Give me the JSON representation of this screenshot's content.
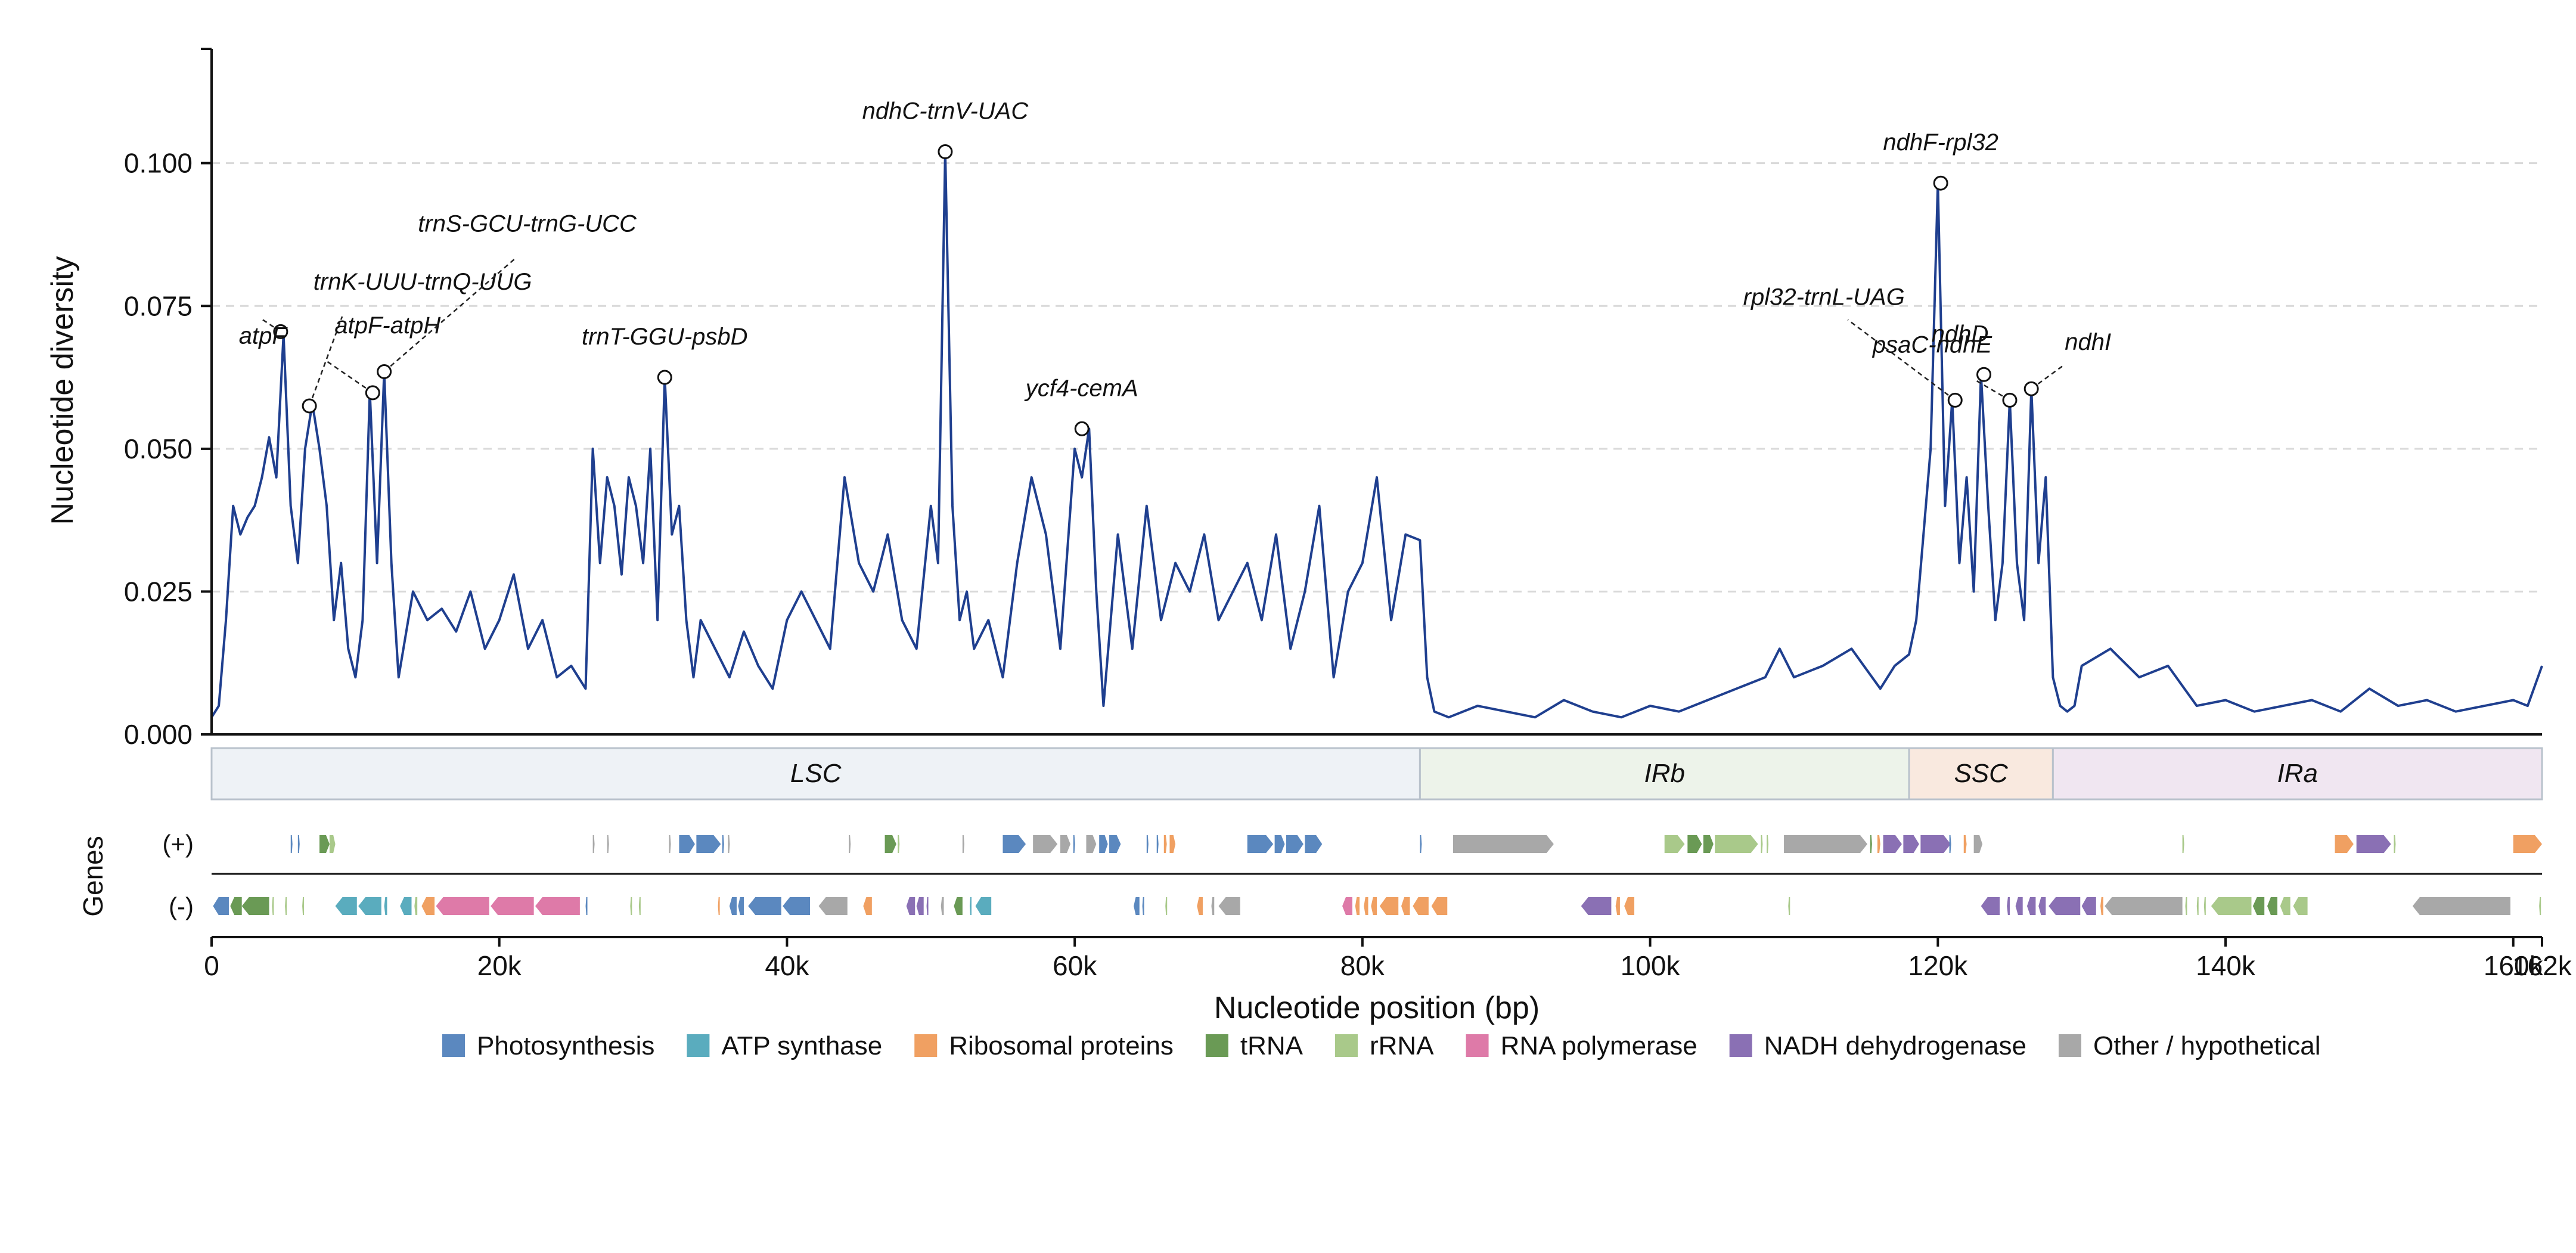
{
  "chart_data": {
    "type": "line",
    "title": "",
    "ylabel": "Nucleotide diversity",
    "xlabel": "Nucleotide position (bp)",
    "genes_label": "Genes",
    "strand_plus_label": "(+)",
    "strand_minus_label": "(-)",
    "ylim": [
      0,
      0.12
    ],
    "xlim": [
      0,
      162000
    ],
    "y_ticks": [
      0,
      0.025,
      0.05,
      0.075,
      0.1
    ],
    "y_tick_labels": [
      "0.000",
      "0.025",
      "0.050",
      "0.075",
      "0.100"
    ],
    "x_ticks": [
      0,
      20000,
      40000,
      60000,
      80000,
      100000,
      120000,
      140000,
      160000,
      162000
    ],
    "x_tick_labels": [
      "0",
      "20k",
      "40k",
      "60k",
      "80k",
      "100k",
      "120k",
      "140k",
      "160k",
      "162k"
    ],
    "grid": "horizontal dashed",
    "line_color": "#1f3f8f",
    "series": [
      {
        "x": [
          0,
          500,
          1000,
          1500,
          2000,
          2500,
          3000,
          3500,
          4000,
          4500,
          5000,
          5500,
          6000,
          6500,
          7000,
          7500,
          8000,
          8500,
          9000,
          9500,
          10000,
          10500,
          11000,
          11500,
          12000,
          12500,
          13000,
          14000,
          15000,
          16000,
          17000,
          18000,
          19000,
          20000,
          21000,
          22000,
          23000,
          24000,
          25000,
          26000,
          26500,
          27000,
          27500,
          28000,
          28500,
          29000,
          29500,
          30000,
          30500,
          31000,
          31500,
          32000,
          32500,
          33000,
          33500,
          34000,
          35000,
          36000,
          37000,
          38000,
          39000,
          40000,
          41000,
          42000,
          43000,
          44000,
          45000,
          46000,
          47000,
          48000,
          49000,
          50000,
          50500,
          51000,
          51500,
          52000,
          52500,
          53000,
          54000,
          55000,
          56000,
          57000,
          58000,
          59000,
          60000,
          60500,
          61000,
          61500,
          62000,
          63000,
          64000,
          65000,
          66000,
          67000,
          68000,
          69000,
          70000,
          71000,
          72000,
          73000,
          74000,
          75000,
          76000,
          77000,
          78000,
          79000,
          80000,
          81000,
          82000,
          83000,
          84000,
          84500,
          85000,
          86000,
          88000,
          90000,
          92000,
          94000,
          96000,
          98000,
          100000,
          102000,
          104000,
          106000,
          108000,
          109000,
          110000,
          112000,
          114000,
          116000,
          117000,
          118000,
          118500,
          119000,
          119500,
          120000,
          120500,
          121000,
          121500,
          122000,
          122500,
          123000,
          123500,
          124000,
          124500,
          125000,
          125500,
          126000,
          126500,
          127000,
          127500,
          128000,
          128500,
          129000,
          129500,
          130000,
          132000,
          134000,
          136000,
          138000,
          140000,
          142000,
          144000,
          146000,
          148000,
          150000,
          152000,
          154000,
          156000,
          158000,
          160000,
          161000,
          162000
        ],
        "y": [
          0.003,
          0.005,
          0.02,
          0.04,
          0.035,
          0.038,
          0.04,
          0.045,
          0.052,
          0.045,
          0.07,
          0.04,
          0.03,
          0.05,
          0.058,
          0.05,
          0.04,
          0.02,
          0.03,
          0.015,
          0.01,
          0.02,
          0.06,
          0.03,
          0.0635,
          0.03,
          0.01,
          0.025,
          0.02,
          0.022,
          0.018,
          0.025,
          0.015,
          0.02,
          0.028,
          0.015,
          0.02,
          0.01,
          0.012,
          0.008,
          0.05,
          0.03,
          0.045,
          0.04,
          0.028,
          0.045,
          0.04,
          0.03,
          0.05,
          0.02,
          0.0625,
          0.035,
          0.04,
          0.02,
          0.01,
          0.02,
          0.015,
          0.01,
          0.018,
          0.012,
          0.008,
          0.02,
          0.025,
          0.02,
          0.015,
          0.045,
          0.03,
          0.025,
          0.035,
          0.02,
          0.015,
          0.04,
          0.03,
          0.102,
          0.04,
          0.02,
          0.025,
          0.015,
          0.02,
          0.01,
          0.03,
          0.045,
          0.035,
          0.015,
          0.05,
          0.045,
          0.0535,
          0.025,
          0.005,
          0.035,
          0.015,
          0.04,
          0.02,
          0.03,
          0.025,
          0.035,
          0.02,
          0.025,
          0.03,
          0.02,
          0.035,
          0.015,
          0.025,
          0.04,
          0.01,
          0.025,
          0.03,
          0.045,
          0.02,
          0.035,
          0.034,
          0.01,
          0.004,
          0.003,
          0.005,
          0.004,
          0.003,
          0.006,
          0.004,
          0.003,
          0.005,
          0.004,
          0.006,
          0.008,
          0.01,
          0.015,
          0.01,
          0.012,
          0.015,
          0.008,
          0.012,
          0.014,
          0.02,
          0.035,
          0.05,
          0.0965,
          0.04,
          0.0585,
          0.03,
          0.045,
          0.025,
          0.063,
          0.04,
          0.02,
          0.03,
          0.0585,
          0.03,
          0.02,
          0.0605,
          0.03,
          0.045,
          0.01,
          0.005,
          0.004,
          0.005,
          0.012,
          0.015,
          0.01,
          0.012,
          0.005,
          0.006,
          0.004,
          0.005,
          0.006,
          0.004,
          0.008,
          0.005,
          0.006,
          0.004,
          0.005,
          0.006,
          0.005,
          0.012
        ]
      }
    ],
    "peaks": [
      {
        "label": "atpF",
        "x": 4800,
        "y": 0.0705
      },
      {
        "label": "trnK-UUU-trnQ-UUG",
        "x": 6800,
        "y": 0.0575
      },
      {
        "label": "atpF-atpH",
        "x": 11200,
        "y": 0.0598
      },
      {
        "label": "trnS-GCU-trnG-UCC",
        "x": 12000,
        "y": 0.0635
      },
      {
        "label": "trnT-GGU-psbD",
        "x": 31500,
        "y": 0.0625
      },
      {
        "label": "ndhC-trnV-UAC",
        "x": 51000,
        "y": 0.102
      },
      {
        "label": "ycf4-cemA",
        "x": 60500,
        "y": 0.0535
      },
      {
        "label": "ndhF-rpl32",
        "x": 120200,
        "y": 0.0965
      },
      {
        "label": "rpl32-trnL-UAG",
        "x": 121200,
        "y": 0.0585
      },
      {
        "label": "ndhD",
        "x": 123200,
        "y": 0.063
      },
      {
        "label": "psaC-ndhE",
        "x": 125000,
        "y": 0.0585
      },
      {
        "label": "ndhI",
        "x": 126500,
        "y": 0.0605
      }
    ],
    "regions": [
      {
        "label": "LSC",
        "start": 0,
        "end": 84000,
        "color": "#eef2f6"
      },
      {
        "label": "IRb",
        "start": 84000,
        "end": 118000,
        "color": "#edf3ea"
      },
      {
        "label": "SSC",
        "start": 118000,
        "end": 128000,
        "color": "#f9e9df"
      },
      {
        "label": "IRa",
        "start": 128000,
        "end": 162000,
        "color": "#f0e6f1"
      }
    ],
    "legend": [
      {
        "label": "Photosynthesis",
        "color": "#5b88bf"
      },
      {
        "label": "ATP synthase",
        "color": "#5aacbe"
      },
      {
        "label": "Ribosomal proteins",
        "color": "#f0a062"
      },
      {
        "label": "tRNA",
        "color": "#6a9a55"
      },
      {
        "label": "rRNA",
        "color": "#a9c98a"
      },
      {
        "label": "RNA polymerase",
        "color": "#de7aa8"
      },
      {
        "label": "NADH dehydrogenase",
        "color": "#8a70b4"
      },
      {
        "label": "Other / hypothetical",
        "color": "#a8a8a8"
      }
    ],
    "genes_plus": [
      {
        "s": 5500,
        "e": 5600,
        "c": "#5b88bf"
      },
      {
        "s": 6000,
        "e": 6100,
        "c": "#5b88bf"
      },
      {
        "s": 7500,
        "e": 8200,
        "c": "#6a9a55"
      },
      {
        "s": 8200,
        "e": 8600,
        "c": "#a9c98a"
      },
      {
        "s": 26500,
        "e": 26600,
        "c": "#a8a8a8"
      },
      {
        "s": 27500,
        "e": 27600,
        "c": "#a8a8a8"
      },
      {
        "s": 31800,
        "e": 31900,
        "c": "#a8a8a8"
      },
      {
        "s": 32500,
        "e": 33600,
        "c": "#5b88bf"
      },
      {
        "s": 33700,
        "e": 35400,
        "c": "#5b88bf"
      },
      {
        "s": 35500,
        "e": 35600,
        "c": "#5b88bf"
      },
      {
        "s": 35900,
        "e": 36000,
        "c": "#a8a8a8"
      },
      {
        "s": 44300,
        "e": 44400,
        "c": "#a8a8a8"
      },
      {
        "s": 46800,
        "e": 47600,
        "c": "#6a9a55"
      },
      {
        "s": 47700,
        "e": 47800,
        "c": "#a9c98a"
      },
      {
        "s": 52200,
        "e": 52300,
        "c": "#a8a8a8"
      },
      {
        "s": 55000,
        "e": 56600,
        "c": "#5b88bf"
      },
      {
        "s": 57100,
        "e": 58800,
        "c": "#a8a8a8"
      },
      {
        "s": 59000,
        "e": 59700,
        "c": "#a8a8a8"
      },
      {
        "s": 59900,
        "e": 60000,
        "c": "#5b88bf"
      },
      {
        "s": 60800,
        "e": 61500,
        "c": "#a8a8a8"
      },
      {
        "s": 61700,
        "e": 62300,
        "c": "#5b88bf"
      },
      {
        "s": 62400,
        "e": 63200,
        "c": "#5b88bf"
      },
      {
        "s": 65000,
        "e": 65100,
        "c": "#5b88bf"
      },
      {
        "s": 65700,
        "e": 65800,
        "c": "#5b88bf"
      },
      {
        "s": 66200,
        "e": 66400,
        "c": "#f0a062"
      },
      {
        "s": 66600,
        "e": 67000,
        "c": "#f0a062"
      },
      {
        "s": 72000,
        "e": 73800,
        "c": "#5b88bf"
      },
      {
        "s": 73900,
        "e": 74600,
        "c": "#5b88bf"
      },
      {
        "s": 74700,
        "e": 75900,
        "c": "#5b88bf"
      },
      {
        "s": 76000,
        "e": 77200,
        "c": "#5b88bf"
      },
      {
        "s": 84000,
        "e": 84100,
        "c": "#5b88bf"
      },
      {
        "s": 86300,
        "e": 93300,
        "c": "#a8a8a8"
      },
      {
        "s": 101000,
        "e": 102400,
        "c": "#a9c98a"
      },
      {
        "s": 102600,
        "e": 103600,
        "c": "#6a9a55"
      },
      {
        "s": 103700,
        "e": 104400,
        "c": "#6a9a55"
      },
      {
        "s": 104500,
        "e": 107500,
        "c": "#a9c98a"
      },
      {
        "s": 107700,
        "e": 107800,
        "c": "#a9c98a"
      },
      {
        "s": 108100,
        "e": 108200,
        "c": "#a9c98a"
      },
      {
        "s": 109300,
        "e": 115100,
        "c": "#a8a8a8"
      },
      {
        "s": 115300,
        "e": 115400,
        "c": "#6a9a55"
      },
      {
        "s": 115800,
        "e": 116000,
        "c": "#f0a062"
      },
      {
        "s": 116200,
        "e": 117500,
        "c": "#8a70b4"
      },
      {
        "s": 117600,
        "e": 118700,
        "c": "#8a70b4"
      },
      {
        "s": 118800,
        "e": 120900,
        "c": "#8a70b4"
      },
      {
        "s": 120800,
        "e": 120900,
        "c": "#5b88bf"
      },
      {
        "s": 121800,
        "e": 122000,
        "c": "#f0a062"
      },
      {
        "s": 122500,
        "e": 123100,
        "c": "#a8a8a8"
      },
      {
        "s": 137000,
        "e": 137100,
        "c": "#a9c98a"
      },
      {
        "s": 147600,
        "e": 148900,
        "c": "#f0a062"
      },
      {
        "s": 149100,
        "e": 151500,
        "c": "#8a70b4"
      },
      {
        "s": 151700,
        "e": 151800,
        "c": "#a9c98a"
      },
      {
        "s": 160000,
        "e": 162000,
        "c": "#f0a062"
      }
    ],
    "genes_minus": [
      {
        "s": 100,
        "e": 1200,
        "c": "#5b88bf"
      },
      {
        "s": 1300,
        "e": 2100,
        "c": "#6a9a55"
      },
      {
        "s": 2100,
        "e": 4000,
        "c": "#6a9a55"
      },
      {
        "s": 4200,
        "e": 4300,
        "c": "#a9c98a"
      },
      {
        "s": 5100,
        "e": 5200,
        "c": "#a9c98a"
      },
      {
        "s": 6300,
        "e": 6400,
        "c": "#a9c98a"
      },
      {
        "s": 8600,
        "e": 10100,
        "c": "#5aacbe"
      },
      {
        "s": 10200,
        "e": 11800,
        "c": "#5aacbe"
      },
      {
        "s": 12000,
        "e": 12200,
        "c": "#5aacbe"
      },
      {
        "s": 13100,
        "e": 13900,
        "c": "#5aacbe"
      },
      {
        "s": 14100,
        "e": 14300,
        "c": "#a9c98a"
      },
      {
        "s": 14600,
        "e": 15500,
        "c": "#f0a062"
      },
      {
        "s": 15600,
        "e": 19300,
        "c": "#de7aa8"
      },
      {
        "s": 19400,
        "e": 22400,
        "c": "#de7aa8"
      },
      {
        "s": 22500,
        "e": 25600,
        "c": "#de7aa8"
      },
      {
        "s": 26000,
        "e": 26100,
        "c": "#5b88bf"
      },
      {
        "s": 29100,
        "e": 29200,
        "c": "#a9c98a"
      },
      {
        "s": 29700,
        "e": 29800,
        "c": "#a9c98a"
      },
      {
        "s": 35200,
        "e": 35300,
        "c": "#f0a062"
      },
      {
        "s": 36000,
        "e": 36500,
        "c": "#5b88bf"
      },
      {
        "s": 36600,
        "e": 37000,
        "c": "#5b88bf"
      },
      {
        "s": 37300,
        "e": 39600,
        "c": "#5b88bf"
      },
      {
        "s": 39700,
        "e": 41600,
        "c": "#5b88bf"
      },
      {
        "s": 42200,
        "e": 44200,
        "c": "#a8a8a8"
      },
      {
        "s": 45300,
        "e": 45900,
        "c": "#f0a062"
      },
      {
        "s": 48300,
        "e": 48900,
        "c": "#8a70b4"
      },
      {
        "s": 49000,
        "e": 49500,
        "c": "#8a70b4"
      },
      {
        "s": 49700,
        "e": 49800,
        "c": "#8a70b4"
      },
      {
        "s": 50700,
        "e": 50900,
        "c": "#a8a8a8"
      },
      {
        "s": 51600,
        "e": 52200,
        "c": "#6a9a55"
      },
      {
        "s": 52700,
        "e": 52800,
        "c": "#5aacbe"
      },
      {
        "s": 53100,
        "e": 54200,
        "c": "#5aacbe"
      },
      {
        "s": 64100,
        "e": 64500,
        "c": "#5b88bf"
      },
      {
        "s": 64700,
        "e": 64800,
        "c": "#5b88bf"
      },
      {
        "s": 66300,
        "e": 66400,
        "c": "#a9c98a"
      },
      {
        "s": 68500,
        "e": 68900,
        "c": "#f0a062"
      },
      {
        "s": 69500,
        "e": 69700,
        "c": "#a8a8a8"
      },
      {
        "s": 70000,
        "e": 71500,
        "c": "#a8a8a8"
      },
      {
        "s": 78600,
        "e": 79300,
        "c": "#de7aa8"
      },
      {
        "s": 79500,
        "e": 79800,
        "c": "#f0a062"
      },
      {
        "s": 80100,
        "e": 80400,
        "c": "#f0a062"
      },
      {
        "s": 80600,
        "e": 81000,
        "c": "#f0a062"
      },
      {
        "s": 81200,
        "e": 82500,
        "c": "#f0a062"
      },
      {
        "s": 82700,
        "e": 83300,
        "c": "#f0a062"
      },
      {
        "s": 83500,
        "e": 84600,
        "c": "#f0a062"
      },
      {
        "s": 84800,
        "e": 85900,
        "c": "#f0a062"
      },
      {
        "s": 95200,
        "e": 97300,
        "c": "#8a70b4"
      },
      {
        "s": 97600,
        "e": 97900,
        "c": "#f0a062"
      },
      {
        "s": 98200,
        "e": 98900,
        "c": "#f0a062"
      },
      {
        "s": 109600,
        "e": 109700,
        "c": "#a9c98a"
      },
      {
        "s": 123000,
        "e": 124300,
        "c": "#8a70b4"
      },
      {
        "s": 124800,
        "e": 125000,
        "c": "#8a70b4"
      },
      {
        "s": 125400,
        "e": 125900,
        "c": "#8a70b4"
      },
      {
        "s": 126200,
        "e": 126800,
        "c": "#8a70b4"
      },
      {
        "s": 127000,
        "e": 127500,
        "c": "#8a70b4"
      },
      {
        "s": 127700,
        "e": 129900,
        "c": "#8a70b4"
      },
      {
        "s": 130000,
        "e": 131000,
        "c": "#8a70b4"
      },
      {
        "s": 131300,
        "e": 131500,
        "c": "#f0a062"
      },
      {
        "s": 131600,
        "e": 137000,
        "c": "#a8a8a8"
      },
      {
        "s": 137200,
        "e": 137300,
        "c": "#a9c98a"
      },
      {
        "s": 138000,
        "e": 138100,
        "c": "#a9c98a"
      },
      {
        "s": 138500,
        "e": 138600,
        "c": "#a9c98a"
      },
      {
        "s": 139000,
        "e": 141800,
        "c": "#a9c98a"
      },
      {
        "s": 141900,
        "e": 142700,
        "c": "#6a9a55"
      },
      {
        "s": 142900,
        "e": 143600,
        "c": "#6a9a55"
      },
      {
        "s": 143800,
        "e": 144500,
        "c": "#a9c98a"
      },
      {
        "s": 144700,
        "e": 145700,
        "c": "#a9c98a"
      },
      {
        "s": 153000,
        "e": 159800,
        "c": "#a8a8a8"
      },
      {
        "s": 161800,
        "e": 161900,
        "c": "#a9c98a"
      }
    ]
  }
}
